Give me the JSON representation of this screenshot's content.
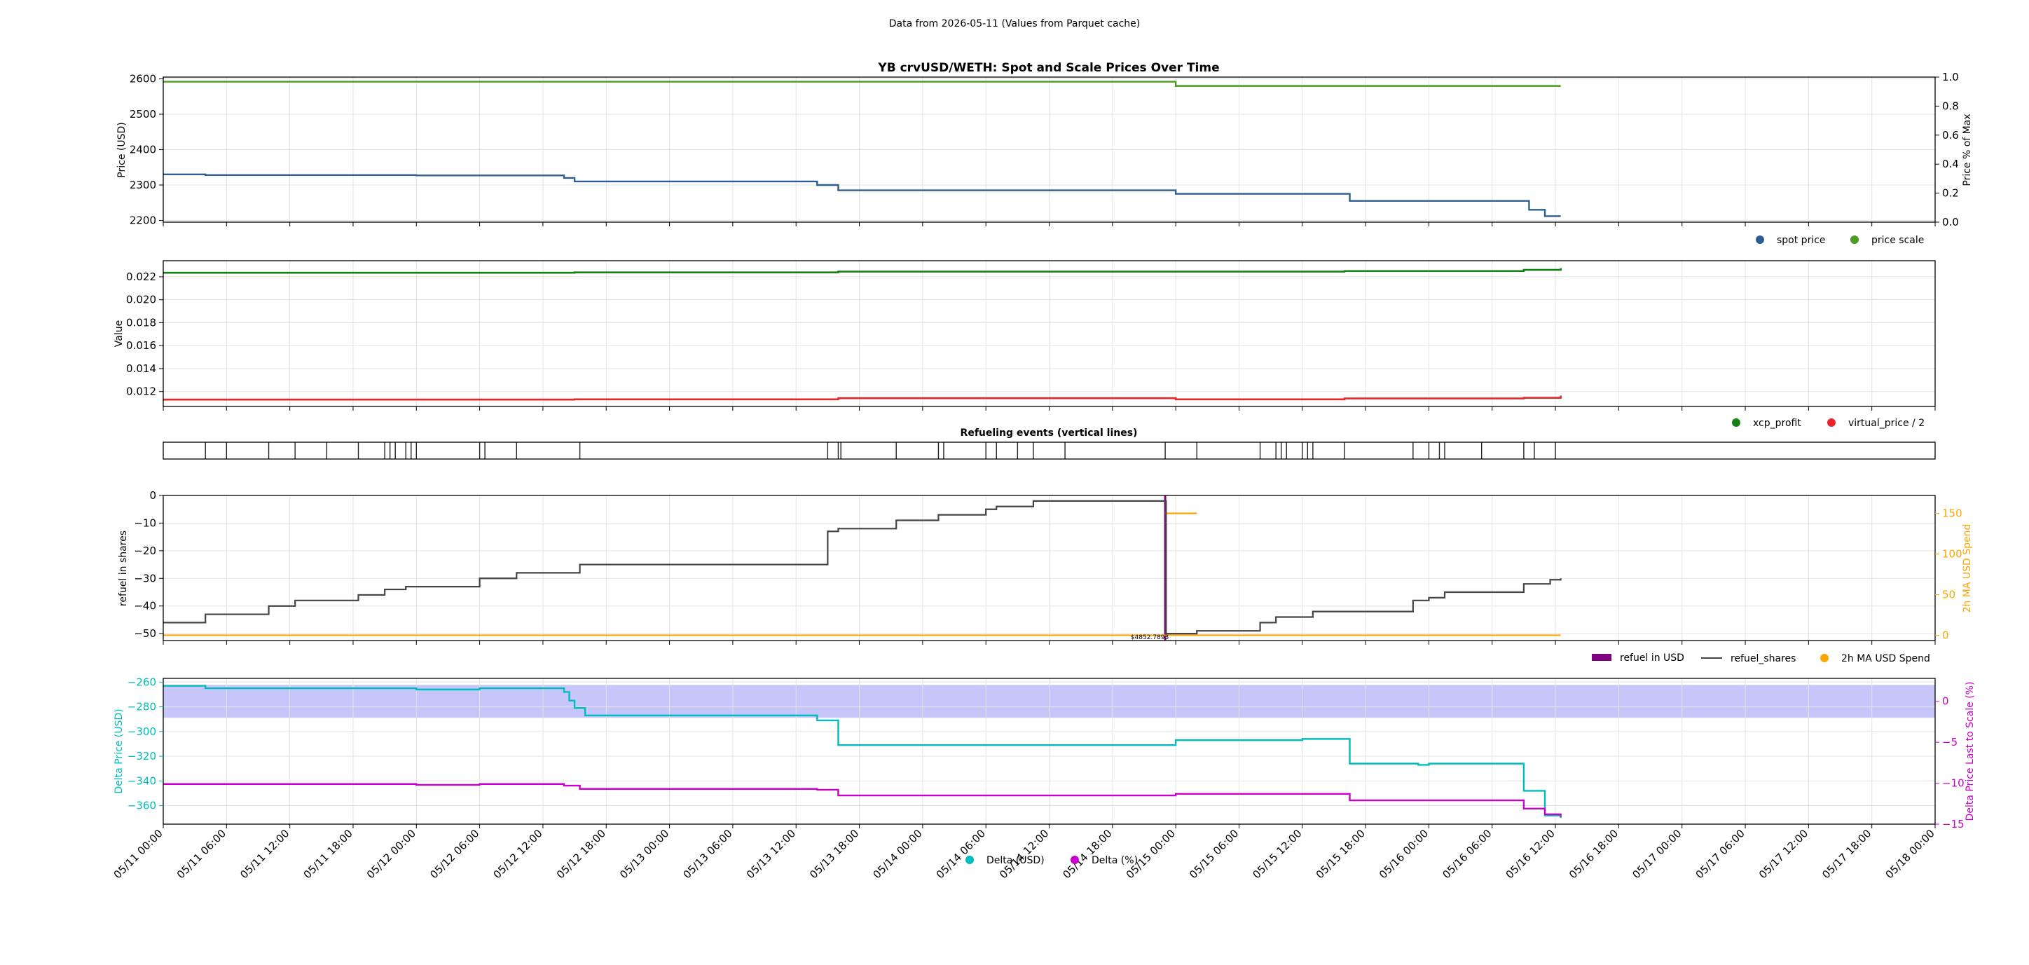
{
  "figure": {
    "suptitle": "Data from 2026-05-11 (Values from Parquet cache)"
  },
  "x_axis": {
    "start": "05/11 00:00",
    "end": "05/18 00:00",
    "ticks": [
      "05/11 00:00",
      "05/11 06:00",
      "05/11 12:00",
      "05/11 18:00",
      "05/12 00:00",
      "05/12 06:00",
      "05/12 12:00",
      "05/12 18:00",
      "05/13 00:00",
      "05/13 06:00",
      "05/13 12:00",
      "05/13 18:00",
      "05/14 00:00",
      "05/14 06:00",
      "05/14 12:00",
      "05/14 18:00",
      "05/15 00:00",
      "05/15 06:00",
      "05/15 12:00",
      "05/15 18:00",
      "05/16 00:00",
      "05/16 06:00",
      "05/16 12:00",
      "05/16 18:00",
      "05/17 00:00",
      "05/17 06:00",
      "05/17 12:00",
      "05/17 18:00",
      "05/18 00:00"
    ]
  },
  "colors": {
    "spot": "#2c5f8f",
    "scale": "#4b9a22",
    "xcp": "#148014",
    "vprice": "#e8262a",
    "shares": "#444444",
    "refuel_usd": "#800080",
    "ma": "#ffa500",
    "delta_usd": "#00bcbc",
    "delta_pct": "#cc00cc",
    "band": "#c6c6fb"
  },
  "chart_data": [
    {
      "type": "line",
      "title": "YB crvUSD/WETH: Spot and Scale Prices Over Time",
      "ylabel": "Price (USD)",
      "ylim": [
        2195,
        2605
      ],
      "yticks": [
        "2200",
        "2300",
        "2400",
        "2500",
        "2600"
      ],
      "ylabel_right": "Price % of Max",
      "ylim_right": [
        0,
        1
      ],
      "yticks_right": [
        "0.0",
        "0.2",
        "0.4",
        "0.6",
        "0.8",
        "1.0"
      ],
      "legend": {
        "placement": "below-right",
        "items": [
          "spot price",
          "price scale"
        ]
      },
      "series": [
        {
          "name": "spot price",
          "axis": "left",
          "points": [
            [
              "05/11 00:00",
              2330
            ],
            [
              "05/11 04:00",
              2328
            ],
            [
              "05/12 00:00",
              2327
            ],
            [
              "05/12 14:00",
              2320
            ],
            [
              "05/12 15:00",
              2310
            ],
            [
              "05/13 14:00",
              2300
            ],
            [
              "05/13 16:00",
              2285
            ],
            [
              "05/15 00:00",
              2275
            ],
            [
              "05/15 16:30",
              2255
            ],
            [
              "05/16 09:30",
              2230
            ],
            [
              "05/16 11:00",
              2212
            ],
            [
              "05/16 12:30",
              2212
            ]
          ]
        },
        {
          "name": "price scale",
          "axis": "left",
          "points": [
            [
              "05/11 00:00",
              2592
            ],
            [
              "05/14 23:00",
              2592
            ],
            [
              "05/15 00:00",
              2580
            ],
            [
              "05/16 12:30",
              2580
            ]
          ]
        }
      ]
    },
    {
      "type": "line",
      "title": "",
      "ylabel": "Value",
      "ylim": [
        0.0107,
        0.0234
      ],
      "yticks": [
        "0.012",
        "0.014",
        "0.016",
        "0.018",
        "0.020",
        "0.022"
      ],
      "legend": {
        "placement": "below-right",
        "items": [
          "xcp_profit",
          "virtual_price / 2"
        ]
      },
      "series": [
        {
          "name": "xcp_profit",
          "points": [
            [
              "05/11 00:00",
              0.02235
            ],
            [
              "05/12 15:00",
              0.02238
            ],
            [
              "05/13 16:00",
              0.02245
            ],
            [
              "05/15 16:00",
              0.0225
            ],
            [
              "05/16 09:00",
              0.0226
            ],
            [
              "05/16 12:30",
              0.02275
            ]
          ]
        },
        {
          "name": "virtual_price / 2",
          "points": [
            [
              "05/11 00:00",
              0.0113
            ],
            [
              "05/12 15:00",
              0.01132
            ],
            [
              "05/13 16:00",
              0.01142
            ],
            [
              "05/15 00:00",
              0.01132
            ],
            [
              "05/15 16:00",
              0.0114
            ],
            [
              "05/16 09:00",
              0.01145
            ],
            [
              "05/16 12:30",
              0.01165
            ]
          ]
        }
      ]
    },
    {
      "type": "events",
      "title": "Refueling events (vertical lines)",
      "events": [
        "05/11 04:00",
        "05/11 06:00",
        "05/11 10:00",
        "05/11 12:30",
        "05/11 15:30",
        "05/11 18:30",
        "05/11 21:00",
        "05/11 21:30",
        "05/11 22:00",
        "05/11 23:00",
        "05/11 23:30",
        "05/12 00:00",
        "05/12 06:00",
        "05/12 06:30",
        "05/12 09:30",
        "05/12 15:30",
        "05/13 15:00",
        "05/13 16:00",
        "05/13 16:15",
        "05/13 21:30",
        "05/14 01:30",
        "05/14 02:00",
        "05/14 06:00",
        "05/14 07:00",
        "05/14 09:00",
        "05/14 10:30",
        "05/14 13:30",
        "05/14 23:00",
        "05/15 02:00",
        "05/15 08:00",
        "05/15 09:30",
        "05/15 10:00",
        "05/15 10:30",
        "05/15 12:00",
        "05/15 12:30",
        "05/15 13:00",
        "05/15 16:00",
        "05/15 22:30",
        "05/16 00:00",
        "05/16 01:00",
        "05/16 01:30",
        "05/16 05:00",
        "05/16 09:00",
        "05/16 10:00",
        "05/16 12:00"
      ]
    },
    {
      "type": "line",
      "title": "",
      "ylabel": "refuel in shares",
      "ylim": [
        -52.5,
        0
      ],
      "yticks": [
        "−50",
        "−40",
        "−30",
        "−20",
        "−10",
        "0"
      ],
      "ylabel_right": "2h MA USD Spend",
      "ylim_right": [
        -6.5,
        172
      ],
      "yticks_right": [
        "0",
        "50",
        "100",
        "150"
      ],
      "annotation": "$4852.7893",
      "legend": {
        "placement": "below-right",
        "items": [
          "refuel in USD",
          "refuel_shares",
          "2h MA USD Spend"
        ]
      },
      "series": [
        {
          "name": "refuel_shares",
          "points": [
            [
              "05/11 00:00",
              -46
            ],
            [
              "05/11 04:00",
              -43
            ],
            [
              "05/11 10:00",
              -40
            ],
            [
              "05/11 12:30",
              -38
            ],
            [
              "05/11 18:30",
              -36
            ],
            [
              "05/11 21:00",
              -34
            ],
            [
              "05/11 23:00",
              -33
            ],
            [
              "05/12 06:00",
              -30
            ],
            [
              "05/12 09:30",
              -28
            ],
            [
              "05/12 15:30",
              -25
            ],
            [
              "05/13 15:00",
              -13
            ],
            [
              "05/13 16:00",
              -12
            ],
            [
              "05/13 21:30",
              -9
            ],
            [
              "05/14 01:30",
              -7
            ],
            [
              "05/14 06:00",
              -5
            ],
            [
              "05/14 07:00",
              -4
            ],
            [
              "05/14 10:30",
              -2
            ],
            [
              "05/14 23:00",
              -2
            ],
            [
              "05/14 23:05",
              -50
            ],
            [
              "05/15 02:00",
              -49
            ],
            [
              "05/15 08:00",
              -46
            ],
            [
              "05/15 09:30",
              -44
            ],
            [
              "05/15 13:00",
              -42
            ],
            [
              "05/15 22:30",
              -38
            ],
            [
              "05/16 00:00",
              -37
            ],
            [
              "05/16 01:30",
              -35
            ],
            [
              "05/16 09:00",
              -32
            ],
            [
              "05/16 11:30",
              -30.5
            ],
            [
              "05/16 12:30",
              -30
            ]
          ]
        },
        {
          "name": "2h MA USD Spend",
          "axis": "right",
          "points": [
            [
              "05/11 00:00",
              0
            ],
            [
              "05/16 12:30",
              0
            ]
          ],
          "extra_segment": [
            [
              "05/14 23:00",
              150
            ],
            [
              "05/15 02:00",
              150
            ]
          ]
        },
        {
          "name": "refuel in USD",
          "axis": "left",
          "bar_at": "05/14 23:00",
          "from": 0,
          "to": -52.5
        }
      ]
    },
    {
      "type": "line",
      "title": "",
      "ylabel": "Delta Price (USD)",
      "ylim": [
        -375,
        -257
      ],
      "yticks": [
        "−360",
        "−340",
        "−320",
        "−300",
        "−280",
        "−260"
      ],
      "ylabel_right": "Delta Price Last to Scale (%)",
      "ylim_right": [
        -15,
        2.8
      ],
      "yticks_right": [
        "−15",
        "−10",
        "−5",
        "0"
      ],
      "band_pct": [
        -2,
        2
      ],
      "legend": {
        "placement": "bottom-center",
        "items": [
          "Delta (USD)",
          "Delta (%)"
        ]
      },
      "series": [
        {
          "name": "Delta (USD)",
          "points": [
            [
              "05/11 00:00",
              -263
            ],
            [
              "05/11 04:00",
              -265
            ],
            [
              "05/12 00:00",
              -266
            ],
            [
              "05/12 06:00",
              -265
            ],
            [
              "05/12 14:00",
              -268
            ],
            [
              "05/12 14:30",
              -275
            ],
            [
              "05/12 15:00",
              -281
            ],
            [
              "05/12 16:00",
              -287
            ],
            [
              "05/13 14:00",
              -291
            ],
            [
              "05/13 16:00",
              -311
            ],
            [
              "05/14 23:00",
              -311
            ],
            [
              "05/15 00:00",
              -307
            ],
            [
              "05/15 08:00",
              -307
            ],
            [
              "05/15 12:00",
              -306
            ],
            [
              "05/15 16:30",
              -326
            ],
            [
              "05/15 23:00",
              -327
            ],
            [
              "05/16 00:00",
              -326
            ],
            [
              "05/16 09:00",
              -348
            ],
            [
              "05/16 11:00",
              -368
            ],
            [
              "05/16 12:30",
              -370
            ]
          ]
        },
        {
          "name": "Delta (%)",
          "axis": "right",
          "points": [
            [
              "05/11 00:00",
              -10.1
            ],
            [
              "05/12 00:00",
              -10.2
            ],
            [
              "05/12 06:00",
              -10.1
            ],
            [
              "05/12 14:00",
              -10.3
            ],
            [
              "05/12 15:30",
              -10.7
            ],
            [
              "05/13 14:00",
              -10.8
            ],
            [
              "05/13 16:00",
              -11.5
            ],
            [
              "05/15 00:00",
              -11.3
            ],
            [
              "05/15 16:30",
              -12.1
            ],
            [
              "05/16 09:00",
              -13.1
            ],
            [
              "05/16 11:00",
              -13.8
            ],
            [
              "05/16 12:30",
              -14.1
            ]
          ]
        }
      ]
    }
  ]
}
